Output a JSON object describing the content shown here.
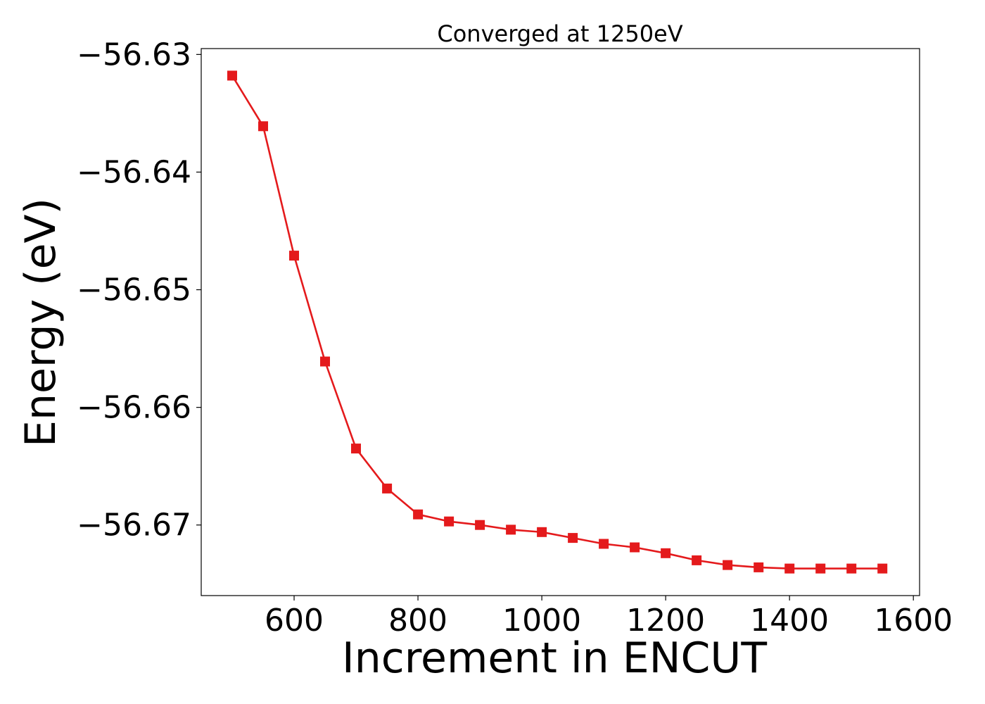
{
  "chart_data": {
    "type": "line",
    "title": "Converged at 1250eV",
    "xlabel": "Increment in ENCUT",
    "ylabel": "Energy (eV)",
    "xlim": [
      450,
      1610
    ],
    "ylim": [
      -56.676,
      -56.6295
    ],
    "x_ticks": [
      600,
      800,
      1000,
      1200,
      1400,
      1600
    ],
    "x_tick_labels": [
      "600",
      "800",
      "1000",
      "1200",
      "1400",
      "1600"
    ],
    "y_ticks": [
      -56.63,
      -56.64,
      -56.65,
      -56.66,
      -56.67
    ],
    "y_tick_labels": [
      "−56.63",
      "−56.64",
      "−56.65",
      "−56.66",
      "−56.67"
    ],
    "grid": false,
    "series": [
      {
        "color": "#e41a1c",
        "marker": "square",
        "x": [
          500,
          550,
          600,
          650,
          700,
          750,
          800,
          850,
          900,
          950,
          1000,
          1050,
          1100,
          1150,
          1200,
          1250,
          1300,
          1350,
          1400,
          1450,
          1500,
          1550
        ],
        "y": [
          -56.6318,
          -56.6361,
          -56.6471,
          -56.6561,
          -56.6635,
          -56.6669,
          -56.6691,
          -56.6697,
          -56.67,
          -56.6704,
          -56.6706,
          -56.6711,
          -56.6716,
          -56.6719,
          -56.6724,
          -56.673,
          -56.6734,
          -56.6736,
          -56.6737,
          -56.6737,
          -56.6737,
          -56.6737
        ]
      }
    ]
  }
}
